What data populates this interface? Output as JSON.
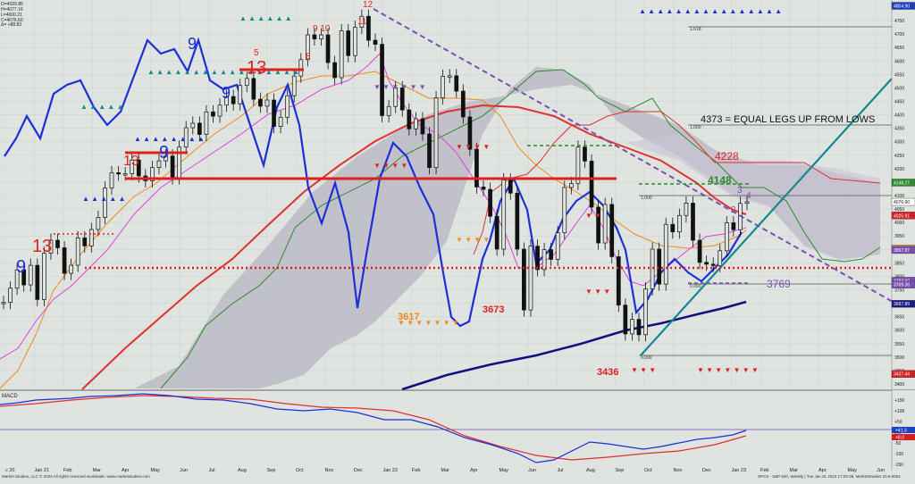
{
  "info_box": [
    "O=4020.85",
    "H=4077.16",
    "L=4000.21",
    "C=4076.60",
    "Δ= +88.83"
  ],
  "x_tick_labels": [
    "c 20",
    "Jan 21",
    "Feb",
    "Mar",
    "Apr",
    "May",
    "Jun",
    "Jul",
    "Aug",
    "Sep",
    "Oct",
    "Nov",
    "Dec",
    "Jan 22",
    "Feb",
    "Mar",
    "Apr",
    "May",
    "Jun",
    "Jul",
    "Aug",
    "Sep",
    "Oct",
    "Nov",
    "Dec",
    "Jan 23",
    "Feb",
    "Mar",
    "Apr",
    "May",
    "Jun"
  ],
  "y_tick_labels": [
    "4800",
    "4750",
    "4700",
    "4650",
    "4600",
    "4550",
    "4500",
    "4450",
    "4400",
    "4350",
    "4300",
    "4250",
    "4200",
    "4150",
    "4100",
    "4050",
    "4000",
    "3950",
    "3900",
    "3850",
    "3800",
    "3750",
    "3700",
    "3650",
    "3600",
    "3550",
    "3500",
    "3450",
    "3400"
  ],
  "macd_label": "MACD",
  "macd_tick_labels": [
    "+150",
    "+100",
    "+50",
    "0.0",
    "-50",
    "-100",
    "-150"
  ],
  "footer_left": "Market Studies, LLC © 2023 All rights reserved worldwide. www.marketstudies.com",
  "footer_right": "SPCS - S&P 500, Weekly | Tue Jan 31 2023 17:09:38, MarketStudies 23.6.8054",
  "annotations": {
    "equal_legs": "4373 = EQUAL LEGS UP FROM LOWS",
    "level_4228": "4228",
    "level_4148": "4148",
    "level_3769": "3769",
    "level_3673": "3673",
    "level_3617": "3617",
    "level_3436": "3436",
    "fib_1": "1.000",
    "fib_2": "1.000",
    "fib_3": "1.618",
    "fib_4": "0.000",
    "fib_5": "0.000"
  },
  "price_badges": [
    {
      "text": "4804.90",
      "color": "#1f3fbf"
    },
    {
      "text": "4148.27",
      "color": "#2e8b2e"
    },
    {
      "text": "4076.60",
      "color": "#ffffff"
    },
    {
      "text": "4025.91",
      "color": "#d42020"
    },
    {
      "text": "3902.61",
      "color": "#e08a1e"
    },
    {
      "text": "3897.87",
      "color": "#7b4fb0"
    },
    {
      "text": "3783.60",
      "color": "#7b4fb0"
    },
    {
      "text": "3769.36",
      "color": "#7b4fb0"
    },
    {
      "text": "3697.89",
      "color": "#1a1a80"
    },
    {
      "text": "3437.44",
      "color": "#d42020"
    }
  ],
  "macd_badges": [
    {
      "text": "+41.3",
      "color": "#1f3fbf"
    },
    {
      "text": "+8.0",
      "color": "#d42020"
    }
  ],
  "colors": {
    "background": "#dfe4e0",
    "ma_red": "#e03030",
    "ma_navy": "#101080",
    "blue_line": "#1c2fd8",
    "magenta_line": "#e040e0",
    "orange_line": "#f08a1a",
    "green_line": "#2e8b2e",
    "teal_line": "#14888e",
    "purple_dash": "#7b4fb0",
    "cloud_fill": "#b8b8c4"
  },
  "chart_data": {
    "type": "candlestick",
    "ylim": [
      3400,
      4800
    ],
    "weekly_ohlc_close_approx": [
      [
        "2020-12-24",
        3703
      ],
      [
        "2020-12-31",
        3756
      ],
      [
        "2021-01-08",
        3824
      ],
      [
        "2021-01-15",
        3768
      ],
      [
        "2021-01-22",
        3841
      ],
      [
        "2021-01-29",
        3714
      ],
      [
        "2021-02-05",
        3886
      ],
      [
        "2021-02-12",
        3934
      ],
      [
        "2021-02-19",
        3906
      ],
      [
        "2021-02-26",
        3811
      ],
      [
        "2021-03-05",
        3841
      ],
      [
        "2021-03-12",
        3943
      ],
      [
        "2021-03-19",
        3913
      ],
      [
        "2021-03-26",
        3974
      ],
      [
        "2021-04-01",
        4019
      ],
      [
        "2021-04-09",
        4128
      ],
      [
        "2021-04-16",
        4185
      ],
      [
        "2021-04-23",
        4180
      ],
      [
        "2021-04-30",
        4181
      ],
      [
        "2021-05-07",
        4232
      ],
      [
        "2021-05-14",
        4173
      ],
      [
        "2021-05-21",
        4155
      ],
      [
        "2021-05-28",
        4204
      ],
      [
        "2021-06-04",
        4229
      ],
      [
        "2021-06-11",
        4247
      ],
      [
        "2021-06-18",
        4166
      ],
      [
        "2021-06-25",
        4280
      ],
      [
        "2021-07-02",
        4352
      ],
      [
        "2021-07-09",
        4369
      ],
      [
        "2021-07-16",
        4327
      ],
      [
        "2021-07-23",
        4411
      ],
      [
        "2021-07-30",
        4395
      ],
      [
        "2021-08-06",
        4436
      ],
      [
        "2021-08-13",
        4468
      ],
      [
        "2021-08-20",
        4441
      ],
      [
        "2021-08-27",
        4509
      ],
      [
        "2021-09-03",
        4535
      ],
      [
        "2021-09-10",
        4458
      ],
      [
        "2021-09-17",
        4432
      ],
      [
        "2021-09-24",
        4455
      ],
      [
        "2021-10-01",
        4357
      ],
      [
        "2021-10-08",
        4391
      ],
      [
        "2021-10-15",
        4471
      ],
      [
        "2021-10-22",
        4544
      ],
      [
        "2021-10-29",
        4605
      ],
      [
        "2021-11-05",
        4697
      ],
      [
        "2021-11-12",
        4682
      ],
      [
        "2021-11-19",
        4697
      ],
      [
        "2021-11-26",
        4594
      ],
      [
        "2021-12-03",
        4538
      ],
      [
        "2021-12-10",
        4712
      ],
      [
        "2021-12-17",
        4620
      ],
      [
        "2021-12-23",
        4725
      ],
      [
        "2021-12-31",
        4766
      ],
      [
        "2022-01-07",
        4677
      ],
      [
        "2022-01-14",
        4662
      ],
      [
        "2022-01-21",
        4397
      ],
      [
        "2022-01-28",
        4431
      ],
      [
        "2022-02-04",
        4500
      ],
      [
        "2022-02-11",
        4418
      ],
      [
        "2022-02-18",
        4348
      ],
      [
        "2022-02-25",
        4385
      ],
      [
        "2022-03-04",
        4329
      ],
      [
        "2022-03-11",
        4204
      ],
      [
        "2022-03-18",
        4463
      ],
      [
        "2022-03-25",
        4543
      ],
      [
        "2022-04-01",
        4545
      ],
      [
        "2022-04-08",
        4488
      ],
      [
        "2022-04-14",
        4392
      ],
      [
        "2022-04-22",
        4272
      ],
      [
        "2022-04-29",
        4132
      ],
      [
        "2022-05-06",
        4123
      ],
      [
        "2022-05-13",
        4023
      ],
      [
        "2022-05-20",
        3901
      ],
      [
        "2022-05-27",
        4158
      ],
      [
        "2022-06-03",
        4109
      ],
      [
        "2022-06-10",
        3901
      ],
      [
        "2022-06-17",
        3675
      ],
      [
        "2022-06-24",
        3912
      ],
      [
        "2022-07-01",
        3825
      ],
      [
        "2022-07-08",
        3899
      ],
      [
        "2022-07-15",
        3863
      ],
      [
        "2022-07-22",
        3962
      ],
      [
        "2022-07-29",
        4130
      ],
      [
        "2022-08-05",
        4145
      ],
      [
        "2022-08-12",
        4280
      ],
      [
        "2022-08-19",
        4228
      ],
      [
        "2022-08-26",
        4057
      ],
      [
        "2022-09-02",
        3924
      ],
      [
        "2022-09-09",
        4067
      ],
      [
        "2022-09-16",
        3873
      ],
      [
        "2022-09-23",
        3693
      ],
      [
        "2022-09-30",
        3586
      ],
      [
        "2022-10-07",
        3640
      ],
      [
        "2022-10-14",
        3583
      ],
      [
        "2022-10-21",
        3753
      ],
      [
        "2022-10-28",
        3901
      ],
      [
        "2022-11-04",
        3771
      ],
      [
        "2022-11-11",
        3993
      ],
      [
        "2022-11-18",
        3965
      ],
      [
        "2022-11-25",
        4026
      ],
      [
        "2022-12-02",
        4072
      ],
      [
        "2022-12-09",
        3934
      ],
      [
        "2022-12-16",
        3852
      ],
      [
        "2022-12-23",
        3845
      ],
      [
        "2022-12-30",
        3840
      ],
      [
        "2023-01-06",
        3895
      ],
      [
        "2023-01-13",
        3999
      ],
      [
        "2023-01-20",
        3973
      ],
      [
        "2023-01-27",
        4071
      ],
      [
        "2023-01-31",
        4077
      ]
    ],
    "horizontal_levels": [
      {
        "label": "4228",
        "value": 4228
      },
      {
        "label": "4148",
        "value": 4148
      },
      {
        "label": "3769",
        "value": 3769
      },
      {
        "label": "3673",
        "value": 3673
      },
      {
        "label": "3617",
        "value": 3617
      },
      {
        "label": "3436",
        "value": 3436
      }
    ]
  }
}
